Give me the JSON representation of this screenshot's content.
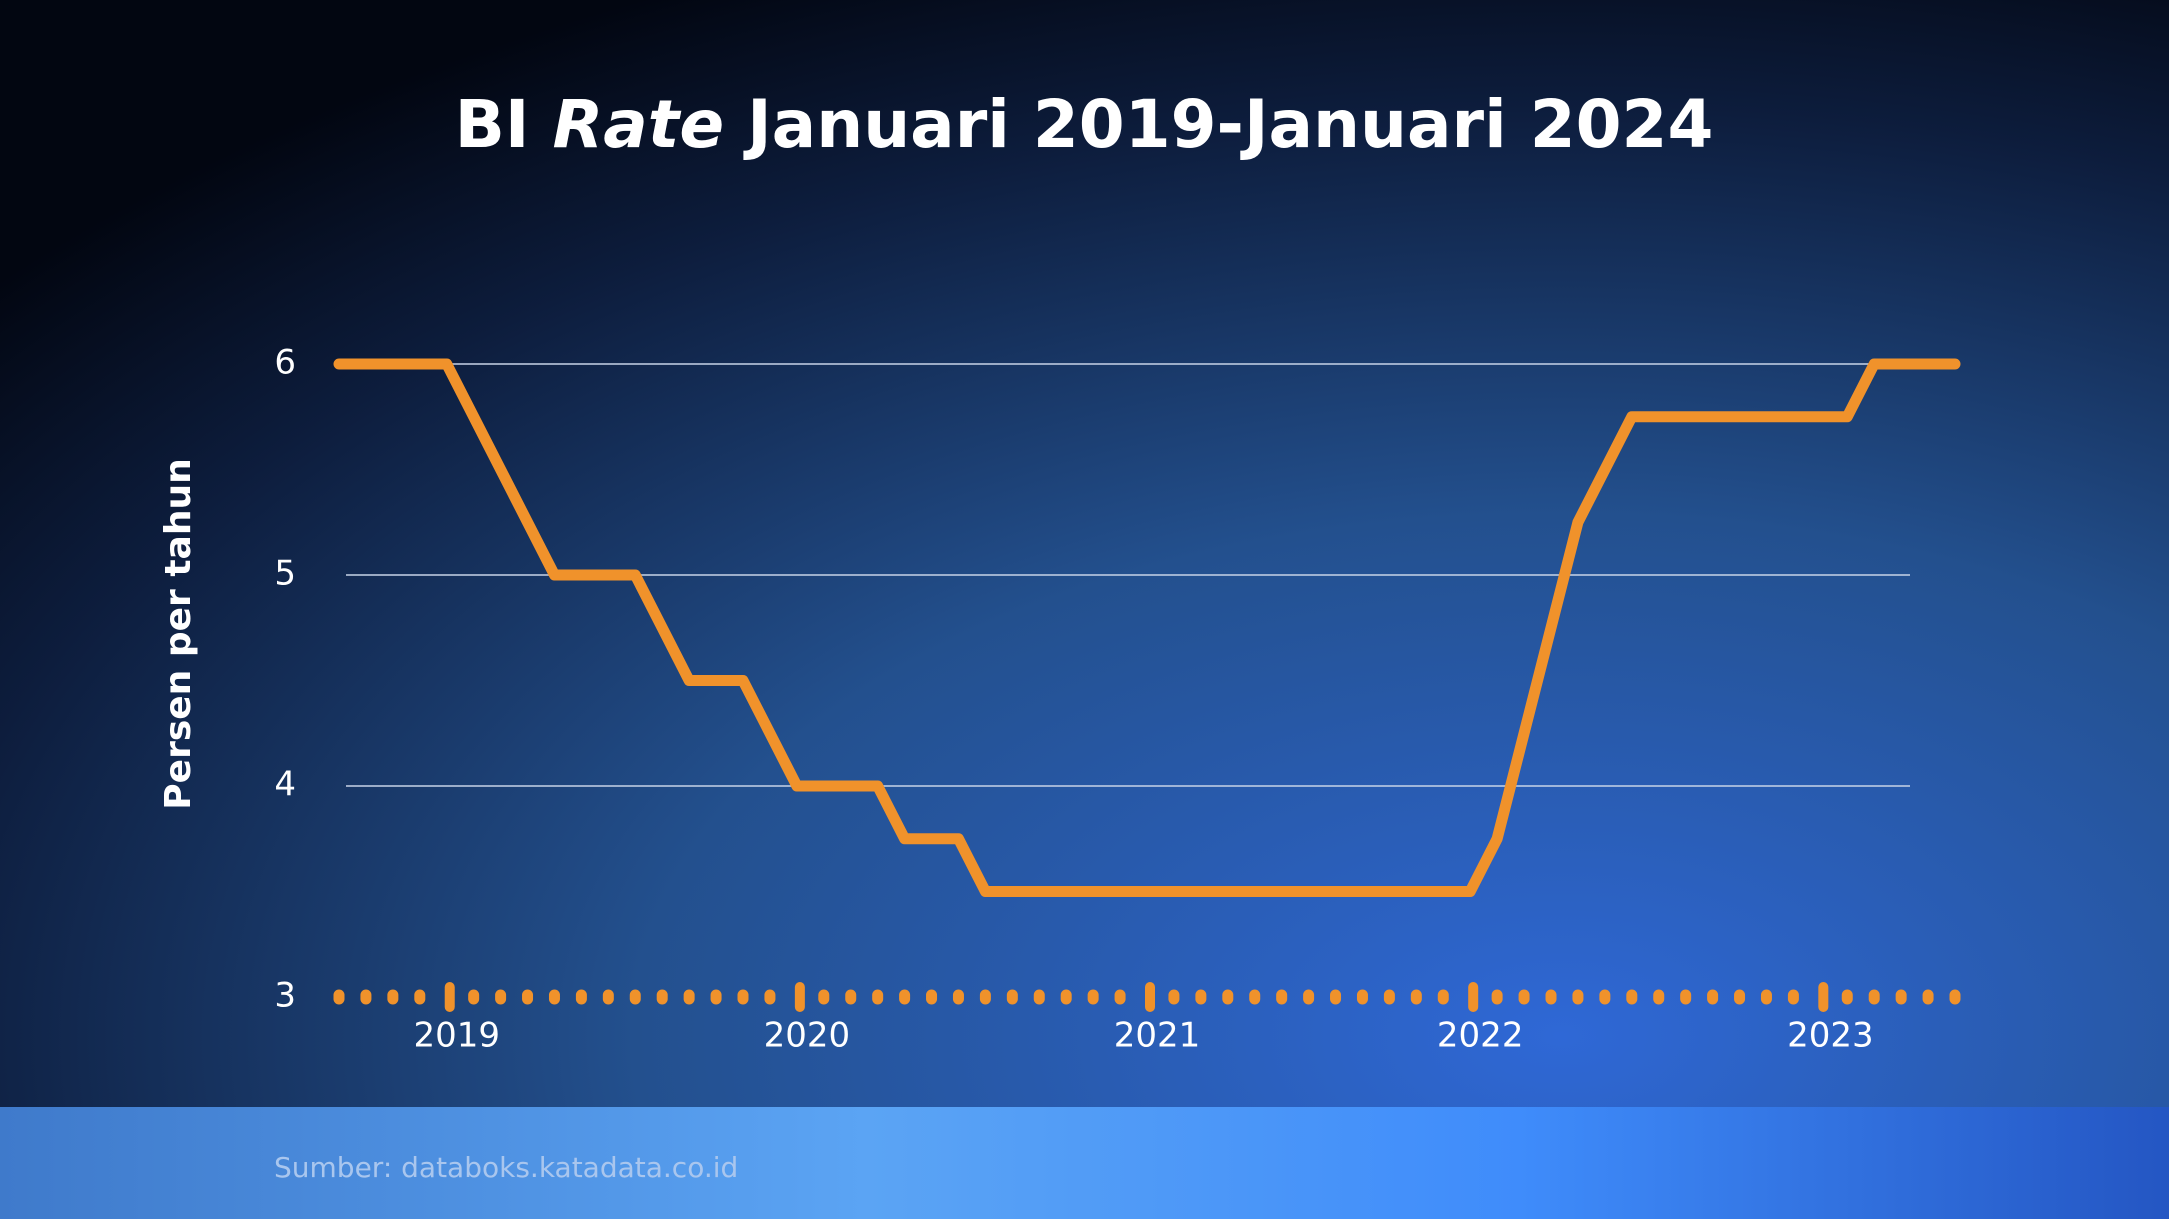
{
  "chart_data": {
    "type": "line",
    "title": {
      "prefix": "BI",
      "emphasis": "Rate",
      "suffix": "Januari 2019-Januari 2024"
    },
    "ylabel": "Persen per tahun",
    "source": "Sumber: databoks.katadata.co.id",
    "categories": [
      null,
      null,
      null,
      null,
      "2019",
      null,
      null,
      null,
      null,
      null,
      null,
      null,
      null,
      null,
      null,
      null,
      null,
      "2020",
      null,
      null,
      null,
      null,
      null,
      null,
      null,
      null,
      null,
      null,
      null,
      null,
      "2021",
      null,
      null,
      null,
      null,
      null,
      null,
      null,
      null,
      null,
      null,
      null,
      "2022",
      null,
      null,
      null,
      null,
      null,
      null,
      null,
      null,
      null,
      null,
      null,
      null,
      "2023",
      null,
      null,
      null,
      null,
      null
    ],
    "values": [
      6,
      6,
      6,
      6,
      6,
      5.75,
      5.5,
      5.25,
      5,
      5,
      5,
      5,
      4.75,
      4.5,
      4.5,
      4.5,
      4.25,
      4,
      4,
      4,
      4,
      3.75,
      3.75,
      3.75,
      3.5,
      3.5,
      3.5,
      3.5,
      3.5,
      3.5,
      3.5,
      3.5,
      3.5,
      3.5,
      3.5,
      3.5,
      3.5,
      3.5,
      3.5,
      3.5,
      3.5,
      3.5,
      3.5,
      3.75,
      4.25,
      4.75,
      5.25,
      5.5,
      5.75,
      5.75,
      5.75,
      5.75,
      5.75,
      5.75,
      5.75,
      5.75,
      5.75,
      6,
      6,
      6,
      6
    ],
    "color": "#f0922b",
    "ylim": [
      3,
      6
    ],
    "yticks": [
      3,
      4,
      5,
      6
    ],
    "grid": true
  }
}
